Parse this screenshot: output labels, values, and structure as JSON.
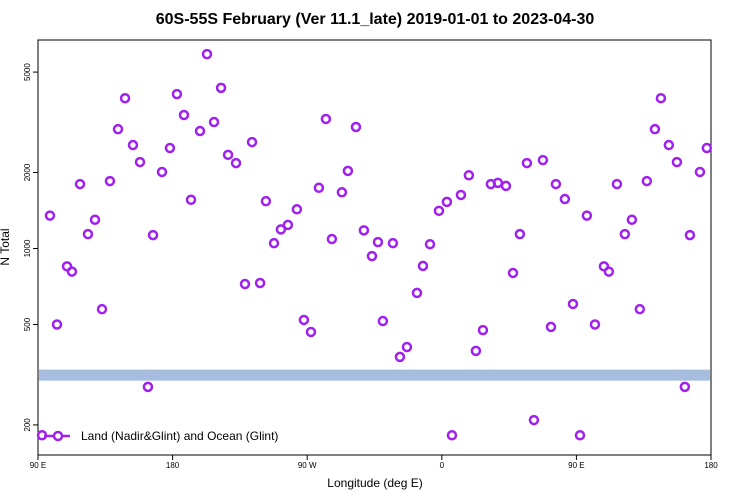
{
  "chart_data": {
    "type": "scatter",
    "title": "60S-55S February (Ver 11.1_late)   2019-01-01 to 2023-04-30",
    "xlabel": "Longitude (deg E)",
    "ylabel": "N Total",
    "xlim": [
      90,
      540
    ],
    "ylim": [
      152,
      6700
    ],
    "ylog": true,
    "xticks": [
      {
        "value": 90,
        "label": "90 E"
      },
      {
        "value": 180,
        "label": "180"
      },
      {
        "value": 270,
        "label": "90 W"
      },
      {
        "value": 360,
        "label": "0"
      },
      {
        "value": 450,
        "label": "90 E"
      },
      {
        "value": 540,
        "label": "180"
      }
    ],
    "yticks": [
      200,
      500,
      1000,
      2000,
      5000
    ],
    "band": {
      "value": 315,
      "color": "#a6bddf"
    },
    "legend": "bottomleft",
    "series": [
      {
        "name": "Land (Nadir&Glint) and Ocean (Glint)",
        "color": "#a020f0",
        "x": [
          92.7,
          98.0,
          102.7,
          109.4,
          112.7,
          118.1,
          123.4,
          128.1,
          132.8,
          138.1,
          143.5,
          148.2,
          153.5,
          158.2,
          163.5,
          166.9,
          172.9,
          178.2,
          182.9,
          187.6,
          192.3,
          198.3,
          203.0,
          207.7,
          212.4,
          217.1,
          222.4,
          228.4,
          233.1,
          238.5,
          242.4,
          247.8,
          252.4,
          257.1,
          263.1,
          267.8,
          272.5,
          277.8,
          282.5,
          286.5,
          293.2,
          297.2,
          302.6,
          307.9,
          313.3,
          317.3,
          320.6,
          327.3,
          332.0,
          336.7,
          343.4,
          347.4,
          352.1,
          358.1,
          363.4,
          366.8,
          372.8,
          378.1,
          382.8,
          387.5,
          392.8,
          397.5,
          402.9,
          407.6,
          412.2,
          416.9,
          421.6,
          427.6,
          433.0,
          436.3,
          442.3,
          447.7,
          452.4,
          457.0,
          462.4,
          468.4,
          471.7,
          477.1,
          482.4,
          487.1,
          492.4,
          497.1,
          502.5,
          506.5,
          511.8,
          517.2,
          522.5,
          525.9,
          532.6,
          537.2
        ],
        "values": [
          182,
          1350,
          500,
          850,
          810,
          1800,
          1140,
          1300,
          575,
          1850,
          2970,
          3940,
          2570,
          2200,
          283,
          1130,
          2010,
          2500,
          4090,
          3380,
          1560,
          2920,
          5890,
          3170,
          4330,
          2350,
          2180,
          723,
          2640,
          730,
          1540,
          1050,
          1190,
          1240,
          1430,
          521,
          467,
          1740,
          3260,
          1090,
          1670,
          2030,
          3030,
          1180,
          933,
          1060,
          516,
          1050,
          372,
          407,
          667,
          853,
          1040,
          1410,
          1530,
          182,
          1630,
          1950,
          393,
          475,
          1800,
          1820,
          1770,
          800,
          1140,
          2180,
          209,
          2240,
          489,
          1800,
          1570,
          603,
          182,
          1350,
          500,
          850,
          810,
          1800,
          1140,
          1300,
          575,
          1850,
          2970,
          3940,
          2570,
          2200,
          283,
          1130,
          2010,
          2500
        ]
      }
    ]
  }
}
